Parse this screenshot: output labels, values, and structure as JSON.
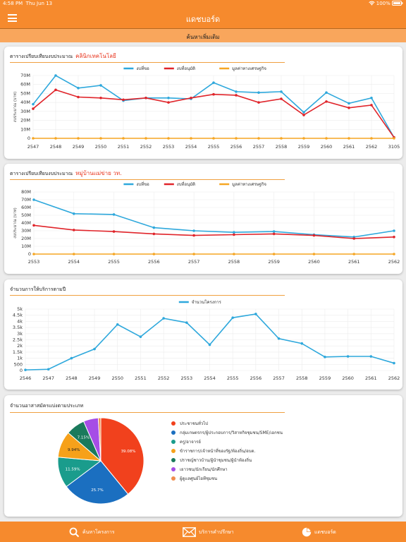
{
  "status": {
    "time": "4:58 PM",
    "date": "Thu Jun 13",
    "battery": "100%"
  },
  "nav": {
    "title": "แดชบอร์ด",
    "menu_icon": "hamburger-icon"
  },
  "subbar": {
    "label": "ค้นหาเพิ่มเติม"
  },
  "cards": {
    "c1": {
      "title": "ตารางเปรียบเทียบงบประมาณ",
      "highlight": "คลินิกเทคโนโลยี"
    },
    "c2": {
      "title": "ตารางเปรียบเทียบงบประมาณ",
      "highlight": "หมู่บ้านแม่ข่าย วท."
    },
    "c3": {
      "title": "จำนวนการให้บริการตามปี"
    },
    "c4": {
      "title": "จำนวนอาสาสมัครแบ่งตามประเภท"
    }
  },
  "colors": {
    "blue": "#2ea8dc",
    "red": "#e0242a",
    "orange": "#f6a623"
  },
  "chart_data": [
    {
      "type": "line",
      "ylabel": "งบประมาณ (บาท)",
      "ylim": [
        0,
        70000000
      ],
      "yticks": [
        "0",
        "10M",
        "20M",
        "30M",
        "40M",
        "50M",
        "60M",
        "70M"
      ],
      "categories": [
        "2547",
        "2548",
        "2549",
        "2550",
        "2551",
        "2552",
        "2553",
        "2554",
        "2555",
        "2556",
        "2557",
        "2558",
        "2559",
        "2560",
        "2561",
        "2562",
        "3105"
      ],
      "series": [
        {
          "name": "งบที่ขอ",
          "color": "#2ea8dc",
          "values": [
            38000000,
            70000000,
            56000000,
            59000000,
            42000000,
            45000000,
            45000000,
            44000000,
            62000000,
            52000000,
            51000000,
            52000000,
            29000000,
            51000000,
            39000000,
            45000000,
            1000000
          ]
        },
        {
          "name": "งบที่อนุมัติ",
          "color": "#e0242a",
          "values": [
            33000000,
            54000000,
            46000000,
            45000000,
            43000000,
            45000000,
            40000000,
            45000000,
            49000000,
            48000000,
            40000000,
            44000000,
            26000000,
            41000000,
            34000000,
            37000000,
            1000000
          ]
        },
        {
          "name": "มูลค่าทางเศรษฐกิจ",
          "color": "#f6a623",
          "values": [
            0,
            0,
            0,
            0,
            0,
            0,
            0,
            0,
            0,
            0,
            0,
            0,
            0,
            0,
            0,
            0,
            0
          ]
        }
      ]
    },
    {
      "type": "line",
      "ylabel": "งบประมาณ (บาท)",
      "ylim": [
        0,
        80000000
      ],
      "yticks": [
        "0",
        "10M",
        "20M",
        "30M",
        "40M",
        "50M",
        "60M",
        "70M",
        "80M"
      ],
      "categories": [
        "2553",
        "2554",
        "2555",
        "2556",
        "2557",
        "2558",
        "2559",
        "2560",
        "2561",
        "2562"
      ],
      "series": [
        {
          "name": "งบที่ขอ",
          "color": "#2ea8dc",
          "values": [
            70000000,
            52000000,
            51000000,
            34000000,
            30000000,
            28000000,
            29000000,
            25000000,
            22000000,
            30000000
          ]
        },
        {
          "name": "งบที่อนุมัติ",
          "color": "#e0242a",
          "values": [
            37000000,
            31000000,
            29000000,
            26000000,
            24000000,
            25000000,
            26000000,
            24000000,
            20000000,
            22000000
          ]
        },
        {
          "name": "มูลค่าทางเศรษฐกิจ",
          "color": "#f6a623",
          "values": [
            0,
            0,
            0,
            0,
            0,
            0,
            0,
            0,
            0,
            0
          ]
        }
      ]
    },
    {
      "type": "line",
      "ylim": [
        0,
        5000
      ],
      "yticks": [
        "0",
        "500",
        "1k",
        "1.5k",
        "2k",
        "2.5k",
        "3k",
        "3.5k",
        "4k",
        "4.5k",
        "5k"
      ],
      "categories": [
        "2546",
        "2547",
        "2548",
        "2549",
        "2550",
        "2551",
        "2552",
        "2553",
        "2554",
        "2555",
        "2556",
        "2557",
        "2558",
        "2559",
        "2560",
        "2561",
        "2562"
      ],
      "series": [
        {
          "name": "จำนวนโครงการ",
          "color": "#2ea8dc",
          "values": [
            50,
            100,
            1000,
            1750,
            3750,
            2750,
            4250,
            3900,
            2100,
            4300,
            4600,
            2600,
            2200,
            1100,
            1150,
            1150,
            600
          ]
        }
      ]
    },
    {
      "type": "pie",
      "slices": [
        {
          "name": "ประชาชนทั่วไป",
          "value": 39.08,
          "label": "39.08%",
          "color": "#f1411d"
        },
        {
          "name": "กลุ่มเกษตรกร/ผู้ประกอบการ/วิสาหกิจชุมชน/SME/เอกชน",
          "value": 25.7,
          "label": "25.7%",
          "color": "#1b6fc0"
        },
        {
          "name": "ครู/อาจารย์",
          "value": 11.59,
          "label": "11.59%",
          "color": "#1a9c8c"
        },
        {
          "name": "ข้าราชการ/เจ้าหน้าที่ของรัฐ/ท้องถิ่น/อบต.",
          "value": 9.94,
          "label": "9.94%",
          "color": "#f6a11a"
        },
        {
          "name": "ปราชญ์ชาวบ้าน/ผู้นำชุมชน/ผู้นำท้องถิ่น",
          "value": 7.15,
          "label": "7.15%",
          "color": "#1a7a5c"
        },
        {
          "name": "เยาวชน/นักเรียน/นักศึกษา",
          "value": 5.6,
          "label": "",
          "color": "#a64de6"
        },
        {
          "name": "ผู้ดูแลศูนย์ไอทีชุมชน",
          "value": 0.94,
          "label": "",
          "color": "#f08d4f"
        }
      ]
    }
  ],
  "tabs": [
    {
      "label": "ค้นหาโครงการ",
      "icon": "search-icon"
    },
    {
      "label": "บริการคำปรึกษา",
      "icon": "mail-icon"
    },
    {
      "label": "แดชบอร์ด",
      "icon": "pie-chart-icon"
    }
  ]
}
